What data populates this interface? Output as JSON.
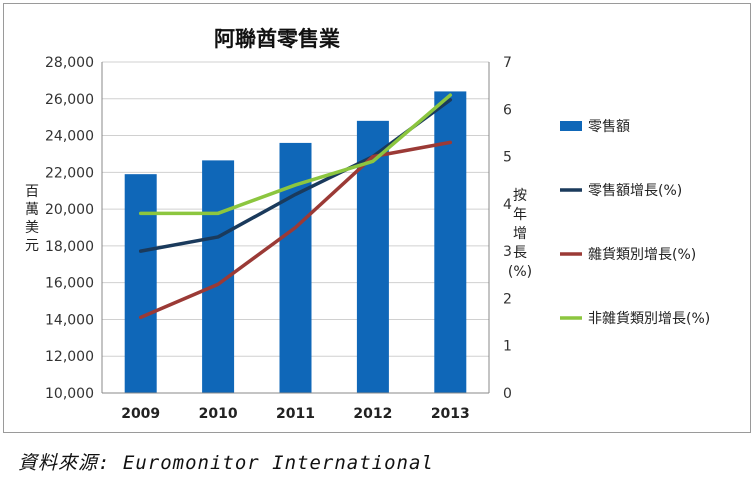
{
  "chart_data": {
    "type": "bar",
    "title": "阿聯酋零售業",
    "categories": [
      "2009",
      "2010",
      "2011",
      "2012",
      "2013"
    ],
    "ylabel": "百萬美元",
    "y2label": [
      "按",
      "年",
      "增",
      "長",
      "(%)"
    ],
    "ylim": [
      10000,
      28000
    ],
    "y2lim": [
      0,
      7
    ],
    "yticks": [
      "10,000",
      "12,000",
      "14,000",
      "16,000",
      "18,000",
      "20,000",
      "22,000",
      "24,000",
      "26,000",
      "28,000"
    ],
    "y2ticks": [
      "0",
      "1",
      "2",
      "3",
      "4",
      "5",
      "6",
      "7"
    ],
    "grid": true,
    "legend_position": "right",
    "bar_series": {
      "name": "零售額",
      "axis": "left",
      "color": "#0f67b8",
      "values": [
        21900,
        22650,
        23600,
        24800,
        26400
      ]
    },
    "line_series": [
      {
        "name": "零售額增長(%)",
        "axis": "right",
        "color": "#1a3a5c",
        "values": [
          3.0,
          3.3,
          4.2,
          5.0,
          6.2
        ]
      },
      {
        "name": "雜貨類別增長(%)",
        "axis": "right",
        "color": "#9b3a36",
        "values": [
          1.6,
          2.3,
          3.5,
          5.0,
          5.3
        ]
      },
      {
        "name": "非雜貨類別增長(%)",
        "axis": "right",
        "color": "#8cc63f",
        "values": [
          3.8,
          3.8,
          4.4,
          4.9,
          6.3
        ]
      }
    ]
  },
  "source": "資料來源: Euromonitor International"
}
